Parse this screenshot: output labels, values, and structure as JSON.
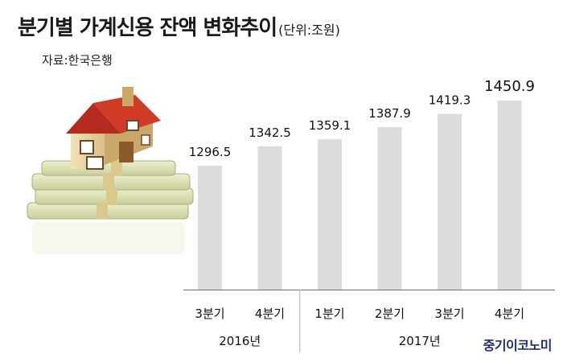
{
  "title": "분기별 가계신용 잔액 변화추이",
  "unit": "(단위:조원)",
  "source": "자료:한국은행",
  "logo": "중기이코노미",
  "chart_data": {
    "type": "bar",
    "title": "분기별 가계신용 잔액 변화추이",
    "unit": "(단위:조원)",
    "categories": [
      "3분기",
      "4분기",
      "1분기",
      "2분기",
      "3분기",
      "4분기"
    ],
    "groups": [
      {
        "label": "2016년",
        "categories": [
          "3분기",
          "4분기"
        ]
      },
      {
        "label": "2017년",
        "categories": [
          "1분기",
          "2분기",
          "3분기",
          "4분기"
        ]
      }
    ],
    "values": [
      1296.5,
      1342.5,
      1359.1,
      1387.9,
      1419.3,
      1450.9
    ],
    "value_labels": [
      "1296.5",
      "1342.5",
      "1359.1",
      "1387.9",
      "1419.3",
      "1450.9"
    ],
    "bar_color": "#dcdcdc",
    "grid": false,
    "xlabel": "",
    "ylabel": ""
  }
}
